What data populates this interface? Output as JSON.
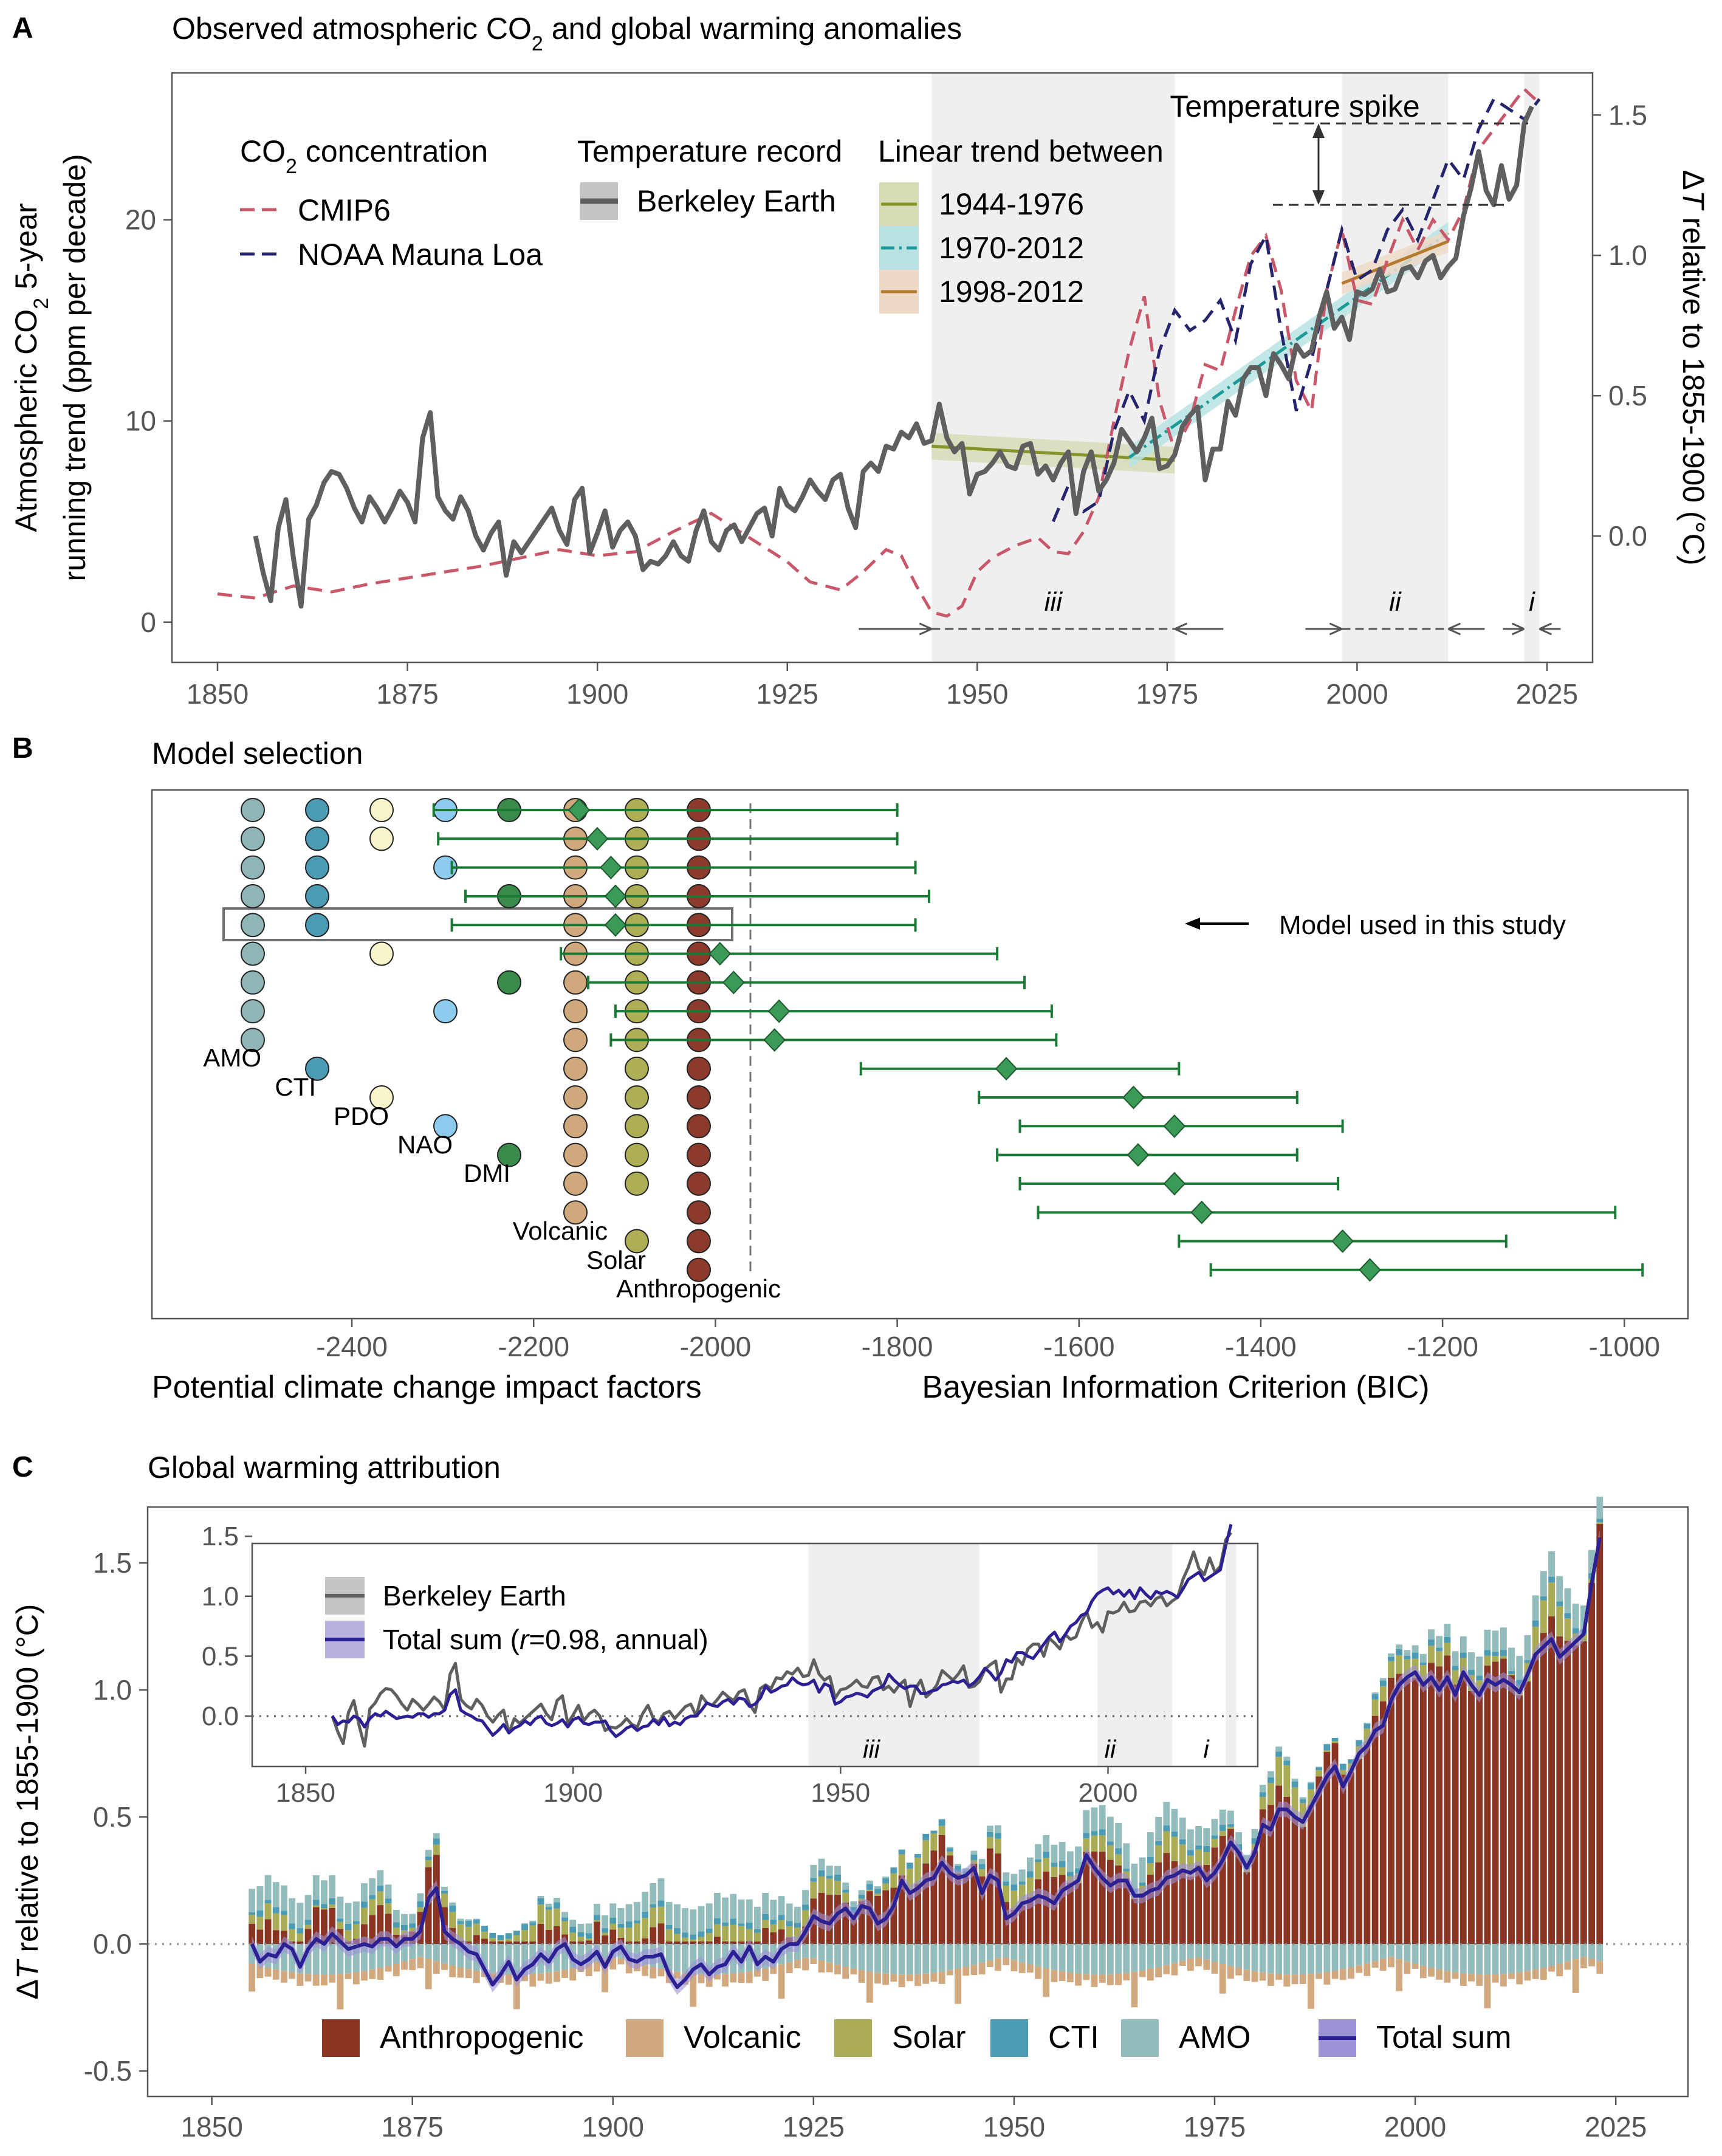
{
  "colors": {
    "temp": "#5f5f5f",
    "cmip": "#c9576a",
    "noaa": "#25256e",
    "t1": "#86932b",
    "t2": "#1b9a98",
    "t3": "#b57a2c",
    "green": "#1a7a35",
    "diamond": "#3b9a57",
    "anthro": "#8a3424",
    "volcanic": "#d2a97e",
    "solar": "#aaab55",
    "cti": "#4a9bb3",
    "amo": "#93bcbd",
    "total": "#2c2193"
  },
  "panelA": {
    "letter": "A",
    "title_pre": "Observed atmospheric CO",
    "title_sub": "2",
    "title_post": " and global warming anomalies",
    "ylabel_left_1": "Atmospheric CO",
    "ylabel_left_sub": "2",
    "ylabel_left_2": " 5-year",
    "ylabel_left_line2": "running trend (ppm per decade)",
    "ylabel_right_pre": "Δ",
    "ylabel_right_T": "T",
    "ylabel_right_post": " relative to 1855-1900 (°C)",
    "left_ticks": [
      "0",
      "10",
      "20"
    ],
    "right_ticks": [
      "0.0",
      "0.5",
      "1.0",
      "1.5"
    ],
    "x_ticks": [
      "1850",
      "1875",
      "1900",
      "1925",
      "1950",
      "1975",
      "2000",
      "2025"
    ],
    "legend_co2_pre": "CO",
    "legend_co2_sub": "2",
    "legend_co2_post": " concentration",
    "legend_cmip": "CMIP6",
    "legend_noaa": "NOAA Mauna Loa",
    "legend_temp_title": "Temperature record",
    "legend_berkeley": "Berkeley Earth",
    "legend_trend_title": "Linear trend between",
    "trend_1": "1944-1976",
    "trend_2": "1970-2012",
    "trend_3": "1998-2012",
    "spike_label": "Temperature spike",
    "period_iii": "iii",
    "period_ii": "ii",
    "period_i": "i"
  },
  "panelB": {
    "letter": "B",
    "title": "Model selection",
    "factor_labels": [
      "AMO",
      "CTI",
      "PDO",
      "NAO",
      "DMI",
      "Volcanic",
      "Solar",
      "Anthropogenic"
    ],
    "x_ticks": [
      "-2400",
      "-2200",
      "-2000",
      "-1800",
      "-1600",
      "-1400",
      "-1200",
      "-1000"
    ],
    "xlabel_left": "Potential climate change impact factors",
    "xlabel_right": "Bayesian Information Criterion (BIC)",
    "annotation": "Model used in this study"
  },
  "panelC": {
    "letter": "C",
    "title": "Global warming attribution",
    "ylabel_pre": "Δ",
    "ylabel_T": "T",
    "ylabel_post": " relative to 1855-1900 (°C)",
    "y_ticks": [
      "-0.5",
      "0.0",
      "0.5",
      "1.0",
      "1.5"
    ],
    "x_ticks": [
      "1850",
      "1875",
      "1900",
      "1925",
      "1950",
      "1975",
      "2000",
      "2025"
    ],
    "inset_y_ticks": [
      "0.0",
      "0.5",
      "1.0",
      "1.5"
    ],
    "inset_x_ticks": [
      "1850",
      "1900",
      "1950",
      "2000"
    ],
    "inset_legend_berkeley": "Berkeley Earth",
    "inset_legend_total_pre": "Total sum (",
    "inset_legend_total_r": "r",
    "inset_legend_total_post": "=0.98, annual)",
    "legend": [
      "Anthropogenic",
      "Volcanic",
      "Solar",
      "CTI",
      "AMO",
      "Total sum"
    ],
    "period_iii": "iii",
    "period_ii": "ii",
    "period_i": "i"
  },
  "chart_data": [
    {
      "type": "line",
      "title": "Observed atmospheric CO2 and global warming anomalies",
      "xlim": [
        1844,
        2031
      ],
      "ylim_left": [
        -2,
        27.3
      ],
      "ylim_right": [
        -0.45,
        1.65
      ],
      "shaded_periods": [
        [
          1944,
          1976
        ],
        [
          1998,
          2012
        ],
        [
          2022,
          2024
        ]
      ],
      "series": [
        {
          "name": "Berkeley Earth",
          "axis": "right",
          "x_start": 1855,
          "values": [
            0.0,
            -0.13,
            -0.23,
            0.03,
            0.13,
            -0.08,
            -0.25,
            0.06,
            0.11,
            0.19,
            0.23,
            0.22,
            0.17,
            0.1,
            0.05,
            0.14,
            0.1,
            0.05,
            0.1,
            0.16,
            0.12,
            0.05,
            0.35,
            0.44,
            0.14,
            0.09,
            0.06,
            0.14,
            0.09,
            0.0,
            -0.05,
            0.01,
            0.05,
            -0.14,
            -0.02,
            -0.06,
            -0.02,
            0.02,
            0.06,
            0.1,
            0.02,
            -0.03,
            0.13,
            0.17,
            -0.06,
            0.01,
            0.09,
            -0.04,
            0.02,
            0.05,
            0.0,
            -0.12,
            -0.09,
            -0.1,
            -0.07,
            -0.02,
            -0.07,
            -0.09,
            0.02,
            0.09,
            -0.02,
            -0.05,
            0.02,
            0.04,
            -0.02,
            0.03,
            0.08,
            0.1,
            0.0,
            0.17,
            0.11,
            0.09,
            0.14,
            0.2,
            0.16,
            0.13,
            0.2,
            0.22,
            0.1,
            0.03,
            0.23,
            0.26,
            0.23,
            0.32,
            0.31,
            0.37,
            0.35,
            0.4,
            0.33,
            0.34,
            0.47,
            0.35,
            0.3,
            0.33,
            0.15,
            0.22,
            0.23,
            0.26,
            0.3,
            0.25,
            0.24,
            0.32,
            0.33,
            0.22,
            0.25,
            0.2,
            0.26,
            0.3,
            0.08,
            0.23,
            0.3,
            0.16,
            0.2,
            0.26,
            0.38,
            0.34,
            0.3,
            0.35,
            0.42,
            0.24,
            0.25,
            0.29,
            0.39,
            0.43,
            0.46,
            0.2,
            0.31,
            0.31,
            0.48,
            0.43,
            0.56,
            0.6,
            0.6,
            0.5,
            0.65,
            0.61,
            0.56,
            0.68,
            0.64,
            0.66,
            0.78,
            0.87,
            0.74,
            0.78,
            0.7,
            0.87,
            0.86,
            0.88,
            0.95,
            0.87,
            0.88,
            0.95,
            0.96,
            0.92,
            0.98,
            1.0,
            0.92,
            0.96,
            0.99,
            1.14,
            1.24,
            1.37,
            1.23,
            1.18,
            1.32,
            1.2,
            1.25,
            1.47,
            1.53
          ]
        },
        {
          "name": "CMIP6",
          "axis": "left",
          "x": [
            1850,
            1855,
            1860,
            1865,
            1870,
            1875,
            1880,
            1885,
            1890,
            1895,
            1900,
            1905,
            1910,
            1915,
            1920,
            1925,
            1928,
            1932,
            1935,
            1938,
            1940,
            1942,
            1944,
            1946,
            1948,
            1950,
            1952,
            1955,
            1958,
            1960,
            1962,
            1964,
            1966,
            1968,
            1970,
            1972,
            1974,
            1976,
            1978,
            1980,
            1982,
            1984,
            1986,
            1988,
            1990,
            1992,
            1994,
            1996,
            1998,
            2000,
            2002,
            2004,
            2006,
            2008,
            2010,
            2012,
            2014,
            2016,
            2018,
            2020,
            2022,
            2024
          ],
          "values": [
            1.4,
            1.2,
            1.8,
            1.5,
            1.9,
            2.2,
            2.5,
            2.8,
            3.2,
            3.6,
            3.3,
            3.5,
            4.5,
            5.4,
            4.2,
            3.0,
            2.0,
            1.6,
            2.5,
            3.6,
            3.3,
            1.8,
            0.5,
            0.3,
            0.8,
            2.5,
            3.2,
            3.8,
            4.2,
            3.5,
            3.4,
            4.5,
            6.2,
            10.0,
            13.5,
            16.2,
            11.0,
            8.5,
            10.0,
            12.8,
            12.5,
            15.5,
            18.2,
            19.2,
            16.5,
            12.0,
            10.5,
            16.5,
            19.5,
            16.0,
            15.8,
            18.0,
            20.0,
            18.5,
            20.0,
            19.0,
            20.5,
            23.5,
            24.5,
            25.5,
            26.5,
            25.8
          ]
        },
        {
          "name": "NOAA Mauna Loa",
          "axis": "left",
          "x": [
            1960,
            1962,
            1964,
            1966,
            1968,
            1970,
            1972,
            1974,
            1976,
            1978,
            1980,
            1982,
            1984,
            1986,
            1988,
            1990,
            1992,
            1994,
            1996,
            1998,
            2000,
            2002,
            2004,
            2006,
            2008,
            2010,
            2012,
            2014,
            2016,
            2018,
            2020,
            2022,
            2024
          ],
          "values": [
            5.0,
            6.8,
            5.5,
            6.0,
            9.5,
            11.5,
            10.0,
            13.5,
            15.5,
            14.5,
            15.0,
            16.0,
            14.0,
            17.8,
            19.2,
            14.5,
            10.5,
            13.0,
            16.5,
            19.5,
            17.0,
            17.5,
            19.5,
            20.5,
            19.0,
            21.0,
            23.0,
            22.0,
            24.5,
            26.0,
            25.5,
            25.0,
            26.0
          ]
        }
      ],
      "trends": [
        {
          "name": "1944-1976",
          "x": [
            1944,
            1976
          ],
          "y": [
            0.32,
            0.27
          ]
        },
        {
          "name": "1970-2012",
          "x": [
            1970,
            2012
          ],
          "y": [
            0.28,
            1.08
          ]
        },
        {
          "name": "1998-2012",
          "x": [
            1998,
            2012
          ],
          "y": [
            0.9,
            1.05
          ]
        }
      ],
      "spike_levels": [
        1.18,
        1.47
      ]
    },
    {
      "type": "scatter",
      "title": "Model selection",
      "xlabel": "Bayesian Information Criterion (BIC)",
      "xlim": [
        -2620,
        -930
      ],
      "factors": [
        "AMO",
        "CTI",
        "PDO",
        "NAO",
        "DMI",
        "Volcanic",
        "Solar",
        "Anthropogenic"
      ],
      "models": [
        {
          "factors": [
            1,
            1,
            1,
            1,
            1,
            1,
            1,
            1
          ],
          "bic": -2150,
          "lo": -2310,
          "hi": -1800
        },
        {
          "factors": [
            1,
            1,
            1,
            0,
            0,
            1,
            1,
            1
          ],
          "bic": -2130,
          "lo": -2305,
          "hi": -1800
        },
        {
          "factors": [
            1,
            1,
            0,
            1,
            0,
            1,
            1,
            1
          ],
          "bic": -2115,
          "lo": -2290,
          "hi": -1780
        },
        {
          "factors": [
            1,
            1,
            0,
            0,
            1,
            1,
            1,
            1
          ],
          "bic": -2110,
          "lo": -2275,
          "hi": -1765
        },
        {
          "factors": [
            1,
            1,
            0,
            0,
            0,
            1,
            1,
            1
          ],
          "bic": -2110,
          "lo": -2290,
          "hi": -1780,
          "selected": true
        },
        {
          "factors": [
            1,
            0,
            1,
            0,
            0,
            1,
            1,
            1
          ],
          "bic": -1995,
          "lo": -2170,
          "hi": -1690
        },
        {
          "factors": [
            1,
            0,
            0,
            0,
            1,
            1,
            1,
            1
          ],
          "bic": -1980,
          "lo": -2140,
          "hi": -1660
        },
        {
          "factors": [
            1,
            0,
            0,
            1,
            0,
            1,
            1,
            1
          ],
          "bic": -1930,
          "lo": -2110,
          "hi": -1630
        },
        {
          "factors": [
            1,
            0,
            0,
            0,
            0,
            1,
            1,
            1
          ],
          "bic": -1935,
          "lo": -2115,
          "hi": -1625
        },
        {
          "factors": [
            0,
            1,
            0,
            0,
            0,
            1,
            1,
            1
          ],
          "bic": -1680,
          "lo": -1840,
          "hi": -1490
        },
        {
          "factors": [
            0,
            0,
            1,
            0,
            0,
            1,
            1,
            1
          ],
          "bic": -1540,
          "lo": -1710,
          "hi": -1360
        },
        {
          "factors": [
            0,
            0,
            0,
            1,
            0,
            1,
            1,
            1
          ],
          "bic": -1495,
          "lo": -1665,
          "hi": -1310
        },
        {
          "factors": [
            0,
            0,
            0,
            0,
            1,
            1,
            1,
            1
          ],
          "bic": -1535,
          "lo": -1690,
          "hi": -1360
        },
        {
          "factors": [
            0,
            0,
            0,
            0,
            0,
            1,
            1,
            1
          ],
          "bic": -1495,
          "lo": -1665,
          "hi": -1315
        },
        {
          "factors": [
            0,
            0,
            0,
            0,
            0,
            1,
            0,
            1
          ],
          "bic": -1465,
          "lo": -1645,
          "hi": -1010
        },
        {
          "factors": [
            0,
            0,
            0,
            0,
            0,
            0,
            1,
            1
          ],
          "bic": -1310,
          "lo": -1490,
          "hi": -1130
        },
        {
          "factors": [
            0,
            0,
            0,
            0,
            0,
            0,
            0,
            1
          ],
          "bic": -1280,
          "lo": -1455,
          "hi": -980
        }
      ]
    },
    {
      "type": "bar",
      "title": "Global warming attribution",
      "xlim": [
        1842,
        2034
      ],
      "ylim": [
        -0.6,
        1.72
      ],
      "stacked": true,
      "series_names": [
        "Anthropogenic",
        "Volcanic",
        "Solar",
        "CTI",
        "AMO"
      ],
      "x_start": 1855,
      "x_end": 2024,
      "total_sum_start": 1855,
      "total_sum_values": [
        0.0,
        -0.07,
        -0.04,
        -0.05,
        0.0,
        -0.02,
        -0.09,
        -0.02,
        0.02,
        0.0,
        0.04,
        0.01,
        -0.02,
        -0.01,
        0.0,
        -0.01,
        0.02,
        0.02,
        -0.01,
        0.02,
        0.02,
        0.05,
        0.18,
        0.22,
        0.05,
        0.02,
        0.0,
        -0.03,
        -0.04,
        -0.1,
        -0.16,
        -0.12,
        -0.07,
        -0.14,
        -0.1,
        -0.08,
        -0.04,
        -0.07,
        -0.02,
        0.0,
        -0.06,
        -0.08,
        -0.06,
        -0.03,
        -0.09,
        -0.03,
        -0.01,
        -0.06,
        -0.07,
        -0.05,
        -0.05,
        -0.04,
        -0.12,
        -0.17,
        -0.14,
        -0.1,
        -0.08,
        -0.12,
        -0.09,
        -0.08,
        -0.03,
        -0.07,
        -0.01,
        -0.08,
        -0.05,
        -0.07,
        -0.02,
        0.0,
        0.0,
        0.05,
        0.11,
        0.09,
        0.08,
        0.12,
        0.14,
        0.1,
        0.15,
        0.14,
        0.08,
        0.1,
        0.15,
        0.25,
        0.2,
        0.22,
        0.25,
        0.26,
        0.32,
        0.28,
        0.26,
        0.27,
        0.3,
        0.2,
        0.27,
        0.25,
        0.1,
        0.12,
        0.16,
        0.17,
        0.19,
        0.18,
        0.16,
        0.21,
        0.23,
        0.25,
        0.35,
        0.3,
        0.26,
        0.23,
        0.25,
        0.25,
        0.19,
        0.19,
        0.21,
        0.22,
        0.26,
        0.27,
        0.29,
        0.28,
        0.3,
        0.25,
        0.28,
        0.33,
        0.4,
        0.36,
        0.3,
        0.36,
        0.47,
        0.45,
        0.53,
        0.53,
        0.5,
        0.48,
        0.54,
        0.6,
        0.66,
        0.7,
        0.62,
        0.68,
        0.75,
        0.78,
        0.84,
        0.86,
        0.96,
        1.02,
        1.05,
        1.07,
        1.02,
        1.05,
        1.0,
        1.05,
        0.98,
        1.07,
        1.02,
        0.98,
        1.04,
        1.02,
        1.04,
        1.02,
        0.99,
        1.06,
        1.14,
        1.17,
        1.2,
        1.13,
        1.16,
        1.19,
        1.22,
        1.42,
        1.6
      ]
    }
  ]
}
